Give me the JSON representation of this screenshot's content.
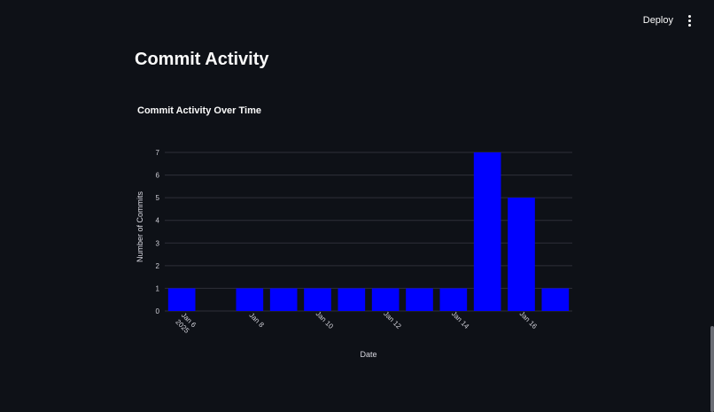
{
  "header": {
    "deploy_label": "Deploy",
    "menu_icon": "kebab-menu-icon"
  },
  "page": {
    "title": "Commit Activity"
  },
  "colors": {
    "bar": "#0000ff",
    "grid": "#2e3038",
    "background": "#0e1117"
  },
  "chart_data": {
    "type": "bar",
    "title": "Commit Activity Over Time",
    "xlabel": "Date",
    "ylabel": "Number of Commits",
    "ylim": [
      0,
      7
    ],
    "yticks": [
      0,
      1,
      2,
      3,
      4,
      5,
      6,
      7
    ],
    "x": [
      "2025-01-06",
      "2025-01-08",
      "2025-01-09",
      "2025-01-10",
      "2025-01-11",
      "2025-01-12",
      "2025-01-13",
      "2025-01-14",
      "2025-01-15",
      "2025-01-16",
      "2025-01-17"
    ],
    "values": [
      1,
      1,
      1,
      1,
      1,
      1,
      1,
      1,
      7,
      5,
      1
    ],
    "xticks": [
      {
        "date": "2025-01-06",
        "label": "Jan 6",
        "sublabel": "2025"
      },
      {
        "date": "2025-01-08",
        "label": "Jan 8",
        "sublabel": ""
      },
      {
        "date": "2025-01-10",
        "label": "Jan 10",
        "sublabel": ""
      },
      {
        "date": "2025-01-12",
        "label": "Jan 12",
        "sublabel": ""
      },
      {
        "date": "2025-01-14",
        "label": "Jan 14",
        "sublabel": ""
      },
      {
        "date": "2025-01-16",
        "label": "Jan 16",
        "sublabel": ""
      }
    ],
    "grid": true,
    "legend": "none"
  }
}
